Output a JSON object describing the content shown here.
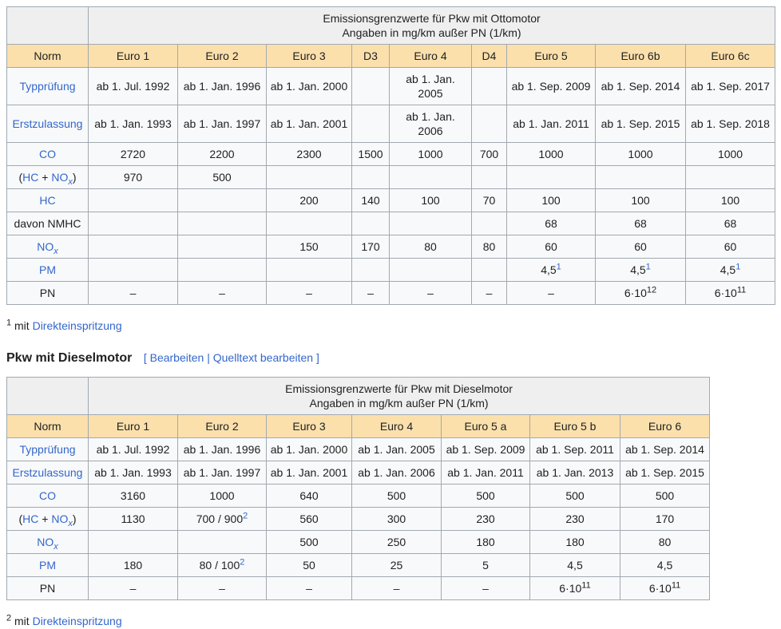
{
  "theme": {
    "link_color": "#3366cc",
    "header_bg": "#fbe0ac",
    "caption_bg": "#efeff0",
    "cell_bg": "#f8f9fa",
    "border_color": "#a2a9b1",
    "text_color": "#202122"
  },
  "section_heading": {
    "title": "Pkw mit Dieselmotor",
    "bracket_open": "[",
    "edit_link": "Bearbeiten",
    "separator": "|",
    "source_edit_link": "Quelltext bearbeiten",
    "bracket_close": "]"
  },
  "footnote_otto": {
    "marker": "1",
    "text": " mit ",
    "link": "Direkteinspritzung"
  },
  "footnote_diesel": {
    "marker": "2",
    "text": " mit ",
    "link": "Direkteinspritzung"
  },
  "otto_table": {
    "caption": [
      "Emissionsgrenzwerte für Pkw mit Ottomotor",
      "Angaben in mg/km außer PN (1/km)"
    ],
    "columns": [
      "Norm",
      "Euro 1",
      "Euro 2",
      "Euro 3",
      "D3",
      "Euro 4",
      "D4",
      "Euro 5",
      "Euro 6b",
      "Euro 6c"
    ],
    "rows": [
      {
        "label": [
          {
            "link": "Typprüfung"
          }
        ],
        "cells": [
          "ab 1. Jul. 1992",
          "ab 1. Jan. 1996",
          "ab 1. Jan. 2000",
          "",
          "ab 1. Jan. 2005",
          "",
          "ab 1. Sep. 2009",
          "ab 1. Sep. 2014",
          "ab 1. Sep. 2017"
        ]
      },
      {
        "label": [
          {
            "link": "Erstzulassung"
          }
        ],
        "cells": [
          "ab 1. Jan. 1993",
          "ab 1. Jan. 1997",
          "ab 1. Jan. 2001",
          "",
          "ab 1. Jan. 2006",
          "",
          "ab 1. Jan. 2011",
          "ab 1. Sep. 2015",
          "ab 1. Sep. 2018"
        ]
      },
      {
        "label": [
          {
            "link": "CO"
          }
        ],
        "cells": [
          "2720",
          "2200",
          "2300",
          "1500",
          "1000",
          "700",
          "1000",
          "1000",
          "1000"
        ]
      },
      {
        "label": [
          {
            "text": "("
          },
          {
            "link": "HC"
          },
          {
            "text": " + "
          },
          {
            "link": "NO",
            "sub": "x"
          },
          {
            "text": ")"
          }
        ],
        "cells": [
          "970",
          "500",
          "",
          "",
          "",
          "",
          "",
          "",
          ""
        ]
      },
      {
        "label": [
          {
            "link": "HC"
          }
        ],
        "cells": [
          "",
          "",
          "200",
          "140",
          "100",
          "70",
          "100",
          "100",
          "100"
        ]
      },
      {
        "label": [
          {
            "text": "davon NMHC"
          }
        ],
        "cells": [
          "",
          "",
          "",
          "",
          "",
          "",
          "68",
          "68",
          "68"
        ]
      },
      {
        "label": [
          {
            "link": "NO",
            "sub": "x"
          }
        ],
        "cells": [
          "",
          "",
          "150",
          "170",
          "80",
          "80",
          "60",
          "60",
          "60"
        ]
      },
      {
        "label": [
          {
            "link": "PM"
          }
        ],
        "cells": [
          "",
          "",
          "",
          "",
          "",
          "",
          {
            "t": "4,5",
            "supLink": "1"
          },
          {
            "t": "4,5",
            "supLink": "1"
          },
          {
            "t": "4,5",
            "supLink": "1"
          }
        ]
      },
      {
        "label": [
          {
            "text": "PN"
          }
        ],
        "cells": [
          "–",
          "–",
          "–",
          "–",
          "–",
          "–",
          "–",
          {
            "t": "6·10",
            "sup": "12"
          },
          {
            "t": "6·10",
            "sup": "11"
          }
        ]
      }
    ]
  },
  "diesel_table": {
    "caption": [
      "Emissionsgrenzwerte für Pkw mit Dieselmotor",
      "Angaben in mg/km außer PN (1/km)"
    ],
    "columns": [
      "Norm",
      "Euro 1",
      "Euro 2",
      "Euro 3",
      "Euro 4",
      "Euro 5 a",
      "Euro 5 b",
      "Euro 6"
    ],
    "rows": [
      {
        "label": [
          {
            "link": "Typprüfung"
          }
        ],
        "cells": [
          "ab 1. Jul. 1992",
          "ab 1. Jan. 1996",
          "ab 1. Jan. 2000",
          "ab 1. Jan. 2005",
          "ab 1. Sep. 2009",
          "ab 1. Sep. 2011",
          "ab 1. Sep. 2014"
        ]
      },
      {
        "label": [
          {
            "link": "Erstzulassung"
          }
        ],
        "cells": [
          "ab 1. Jan. 1993",
          "ab 1. Jan. 1997",
          "ab 1. Jan. 2001",
          "ab 1. Jan. 2006",
          "ab 1. Jan. 2011",
          "ab 1. Jan. 2013",
          "ab 1. Sep. 2015"
        ]
      },
      {
        "label": [
          {
            "link": "CO"
          }
        ],
        "cells": [
          "3160",
          "1000",
          "640",
          "500",
          "500",
          "500",
          "500"
        ]
      },
      {
        "label": [
          {
            "text": "("
          },
          {
            "link": "HC"
          },
          {
            "text": " + "
          },
          {
            "link": "NO",
            "sub": "x"
          },
          {
            "text": ")"
          }
        ],
        "cells": [
          "1130",
          {
            "t": "700 / 900",
            "supLink": "2"
          },
          "560",
          "300",
          "230",
          "230",
          "170"
        ]
      },
      {
        "label": [
          {
            "link": "NO",
            "sub": "x"
          }
        ],
        "cells": [
          "",
          "",
          "500",
          "250",
          "180",
          "180",
          "80"
        ]
      },
      {
        "label": [
          {
            "link": "PM"
          }
        ],
        "cells": [
          "180",
          {
            "t": "80 / 100",
            "supLink": "2"
          },
          "50",
          "25",
          "5",
          "4,5",
          "4,5"
        ]
      },
      {
        "label": [
          {
            "text": "PN"
          }
        ],
        "cells": [
          "–",
          "–",
          "–",
          "–",
          "–",
          {
            "t": "6·10",
            "sup": "11"
          },
          {
            "t": "6·10",
            "sup": "11"
          }
        ]
      }
    ]
  }
}
